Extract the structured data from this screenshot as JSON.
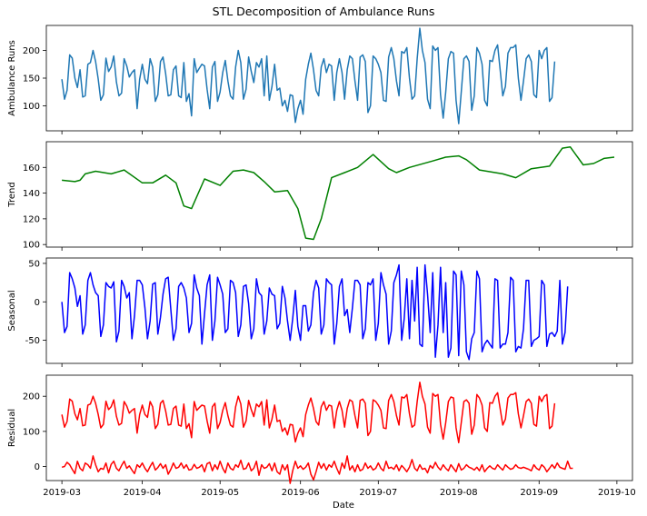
{
  "chart_data": {
    "type": "line",
    "title": "STL Decomposition of Ambulance Runs",
    "xlabel": "Date",
    "xlim": [
      "2019-02-23",
      "2019-10-07"
    ],
    "xticks": [
      "2019-03",
      "2019-04",
      "2019-05",
      "2019-06",
      "2019-07",
      "2019-08",
      "2019-09",
      "2019-10"
    ],
    "panels": [
      {
        "id": "observed",
        "ylabel": "Ambulance Runs",
        "color": "#1f77b4",
        "ylim": [
          55,
          245
        ],
        "yticks": [
          100,
          150,
          200
        ],
        "series": [
          {
            "x_start": "2019-03-01",
            "step_days": 1,
            "values": [
              148,
              112,
              128,
              192,
              186,
              150,
              133,
              165,
              116,
              118,
              175,
              178,
              200,
              180,
              148,
              110,
              120,
              186,
              162,
              170,
              190,
              143,
              118,
              123,
              185,
              172,
              152,
              160,
              165,
              95,
              148,
              175,
              148,
              140,
              185,
              170,
              108,
              120,
              180,
              188,
              158,
              118,
              120,
              165,
              172,
              118,
              115,
              178,
              108,
              122,
              82,
              185,
              160,
              168,
              175,
              172,
              130,
              95,
              170,
              180,
              108,
              125,
              160,
              182,
              145,
              118,
              112,
              170,
              200,
              178,
              112,
              130,
              188,
              162,
              142,
              178,
              170,
              185,
              118,
              190,
              110,
              135,
              175,
              128,
              132,
              100,
              110,
              90,
              120,
              118,
              70,
              95,
              110,
              85,
              148,
              175,
              195,
              165,
              128,
              118,
              170,
              185,
              160,
              175,
              172,
              110,
              160,
              185,
              160,
              112,
              165,
              190,
              185,
              145,
              110,
              188,
              192,
              180,
              88,
              100,
              190,
              185,
              175,
              160,
              110,
              108,
              188,
              205,
              185,
              145,
              118,
              198,
              195,
              205,
              150,
              112,
              118,
              185,
              240,
              200,
              178,
              112,
              95,
              208,
              200,
              205,
              120,
              78,
              125,
              185,
              198,
              195,
              110,
              68,
              125,
              185,
              190,
              180,
              92,
              118,
              205,
              195,
              175,
              110,
              100,
              182,
              180,
              200,
              210,
              165,
              118,
              135,
              195,
              205,
              205,
              210,
              150,
              110,
              145,
              185,
              192,
              180,
              120,
              115,
              200,
              185,
              200,
              205,
              108,
              115,
              180
            ]
          }
        ]
      },
      {
        "id": "trend",
        "ylabel": "Trend",
        "color": "#008000",
        "ylim": [
          98,
          180
        ],
        "yticks": [
          100,
          120,
          140,
          160
        ],
        "series": [
          {
            "x": [
              "2019-03-01",
              "2019-03-06",
              "2019-03-08",
              "2019-03-10",
              "2019-03-14",
              "2019-03-20",
              "2019-03-25",
              "2019-04-01",
              "2019-04-05",
              "2019-04-10",
              "2019-04-14",
              "2019-04-17",
              "2019-04-20",
              "2019-04-25",
              "2019-05-01",
              "2019-05-06",
              "2019-05-10",
              "2019-05-14",
              "2019-05-18",
              "2019-05-22",
              "2019-05-27",
              "2019-05-31",
              "2019-06-03",
              "2019-06-06",
              "2019-06-09",
              "2019-06-13",
              "2019-06-18",
              "2019-06-23",
              "2019-06-29",
              "2019-07-05",
              "2019-07-08",
              "2019-07-13",
              "2019-07-22",
              "2019-07-27",
              "2019-08-01",
              "2019-08-04",
              "2019-08-09",
              "2019-08-18",
              "2019-08-23",
              "2019-08-29",
              "2019-09-05",
              "2019-09-10",
              "2019-09-13",
              "2019-09-18",
              "2019-09-22",
              "2019-09-26",
              "2019-09-30"
            ],
            "values": [
              150,
              149,
              150,
              155,
              157,
              155,
              158,
              148,
              148,
              154,
              148,
              130,
              128,
              151,
              146,
              157,
              158,
              156,
              149,
              141,
              142,
              128,
              105,
              104,
              120,
              152,
              156,
              160,
              170,
              159,
              156,
              160,
              165,
              168,
              169,
              166,
              158,
              155,
              152,
              159,
              161,
              175,
              176,
              162,
              163,
              167,
              168
            ]
          }
        ]
      },
      {
        "id": "seasonal",
        "ylabel": "Seasonal",
        "color": "#0000ff",
        "ylim": [
          -80,
          57
        ],
        "yticks": [
          -50,
          0,
          50
        ],
        "series": [
          {
            "x_start": "2019-03-01",
            "step_days": 1,
            "values": [
              0,
              -40,
              -32,
              38,
              30,
              18,
              -6,
              8,
              -42,
              -30,
              28,
              38,
              22,
              12,
              8,
              -45,
              -30,
              25,
              20,
              18,
              26,
              -52,
              -38,
              28,
              20,
              5,
              12,
              -48,
              -18,
              28,
              28,
              22,
              -8,
              -48,
              -25,
              23,
              25,
              -42,
              -20,
              10,
              30,
              32,
              -10,
              -50,
              -35,
              20,
              25,
              18,
              5,
              -40,
              -28,
              35,
              18,
              8,
              -55,
              -15,
              22,
              35,
              -50,
              -25,
              32,
              22,
              10,
              -40,
              -35,
              28,
              25,
              12,
              -45,
              -30,
              20,
              22,
              -2,
              -48,
              -35,
              30,
              12,
              8,
              -42,
              -25,
              18,
              10,
              8,
              -35,
              -28,
              20,
              5,
              -25,
              -50,
              -22,
              15,
              -32,
              -50,
              -5,
              -5,
              -38,
              -30,
              12,
              28,
              18,
              -42,
              -30,
              30,
              25,
              22,
              -55,
              -28,
              20,
              30,
              -18,
              -10,
              -40,
              -8,
              28,
              28,
              22,
              -48,
              -35,
              25,
              22,
              30,
              -50,
              -28,
              38,
              22,
              10,
              -55,
              -38,
              25,
              35,
              48,
              -50,
              -22,
              30,
              -48,
              28,
              -25,
              45,
              -55,
              -58,
              48,
              10,
              -40,
              38,
              -72,
              -30,
              45,
              -40,
              25,
              -72,
              -60,
              40,
              35,
              -70,
              40,
              22,
              -65,
              -75,
              -48,
              -40,
              40,
              30,
              -65,
              -55,
              -50,
              -55,
              -60,
              30,
              28,
              -60,
              -55,
              -55,
              -40,
              32,
              28,
              -65,
              -58,
              -60,
              -35,
              28,
              28,
              -58,
              -50,
              -48,
              -45,
              28,
              22,
              -58,
              -42,
              -40,
              -45,
              -38,
              28,
              -55,
              -40,
              20
            ]
          }
        ]
      },
      {
        "id": "residual",
        "ylabel": "Residual",
        "color": "#ff0000",
        "ylim": [
          -40,
          260
        ],
        "yticks": [
          0,
          100,
          200
        ],
        "series": [
          {
            "x_start": "2019-03-01",
            "step_days": 1,
            "values": [
              148,
              112,
              128,
              192,
              186,
              150,
              133,
              165,
              116,
              118,
              175,
              178,
              200,
              180,
              148,
              110,
              120,
              186,
              162,
              170,
              190,
              143,
              118,
              123,
              185,
              172,
              152,
              160,
              165,
              95,
              148,
              175,
              148,
              140,
              185,
              170,
              108,
              120,
              180,
              188,
              158,
              118,
              120,
              165,
              172,
              118,
              115,
              178,
              108,
              122,
              82,
              185,
              160,
              168,
              175,
              172,
              130,
              95,
              170,
              180,
              108,
              125,
              160,
              182,
              145,
              118,
              112,
              170,
              200,
              178,
              112,
              130,
              188,
              162,
              142,
              178,
              170,
              185,
              118,
              190,
              110,
              135,
              175,
              128,
              132,
              100,
              110,
              90,
              120,
              118,
              70,
              95,
              110,
              85,
              148,
              175,
              195,
              165,
              128,
              118,
              170,
              185,
              160,
              175,
              172,
              110,
              160,
              185,
              160,
              112,
              165,
              190,
              185,
              145,
              110,
              188,
              192,
              180,
              88,
              100,
              190,
              185,
              175,
              160,
              110,
              108,
              188,
              205,
              185,
              145,
              118,
              198,
              195,
              205,
              150,
              112,
              118,
              185,
              240,
              200,
              178,
              112,
              95,
              208,
              200,
              205,
              120,
              78,
              125,
              185,
              198,
              195,
              110,
              68,
              125,
              185,
              190,
              180,
              92,
              118,
              205,
              195,
              175,
              110,
              100,
              182,
              180,
              200,
              210,
              165,
              118,
              135,
              195,
              205,
              205,
              210,
              150,
              110,
              145,
              185,
              192,
              180,
              120,
              115,
              200,
              185,
              200,
              205,
              108,
              115,
              180
            ]
          },
          {
            "x_start": "2019-03-01",
            "step_days": 1,
            "values": [
              -2,
              0,
              12,
              5,
              -8,
              -20,
              15,
              -5,
              -12,
              10,
              5,
              -5,
              30,
              5,
              -15,
              -5,
              -8,
              10,
              -18,
              6,
              15,
              -5,
              -12,
              3,
              15,
              -5,
              2,
              -10,
              -20,
              5,
              -2,
              10,
              -5,
              -15,
              0,
              12,
              -10,
              -3,
              8,
              -5,
              5,
              -22,
              -8,
              10,
              -5,
              -2,
              10,
              -5,
              5,
              -10,
              -8,
              6,
              -5,
              -2,
              5,
              -15,
              8,
              12,
              -12,
              5,
              -8,
              15,
              -5,
              -18,
              10,
              -5,
              -10,
              5,
              -2,
              18,
              -8,
              -5,
              10,
              -12,
              -5,
              15,
              -25,
              5,
              -5,
              -2,
              8,
              -12,
              10,
              -15,
              -22,
              5,
              -10,
              5,
              -48,
              -12,
              15,
              -5,
              2,
              -8,
              -2,
              10,
              -22,
              -38,
              -15,
              12,
              -5,
              8,
              -10,
              5,
              -2,
              15,
              -5,
              -22,
              10,
              -5,
              30,
              -10,
              2,
              -15,
              5,
              -12,
              -8,
              10,
              -5,
              2,
              -10,
              -5,
              10,
              -5,
              -12,
              15,
              -5,
              -2,
              -8,
              5,
              -12,
              3,
              -5,
              -15,
              -2,
              20,
              -5,
              -12,
              5,
              -8,
              -5,
              -18,
              3,
              -5,
              12,
              -2,
              -10,
              5,
              -5,
              -12,
              5,
              -5,
              -15,
              8,
              -10,
              -5,
              5,
              -2,
              -5,
              -10,
              -2,
              -12,
              5,
              -15,
              -5,
              2,
              -5,
              -8,
              5,
              -3,
              -10,
              5,
              -2,
              -8,
              -5,
              5,
              -3,
              -5,
              -2,
              -5,
              -8,
              -12,
              5,
              -5,
              -10,
              5,
              -2,
              -15,
              -5,
              5,
              -5,
              10,
              -2,
              -5,
              -8,
              15,
              -5,
              -5
            ]
          }
        ]
      }
    ]
  }
}
